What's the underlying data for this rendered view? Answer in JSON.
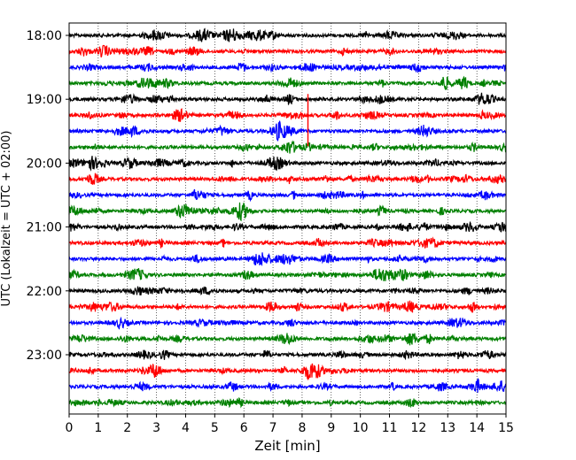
{
  "chart_data": {
    "type": "line",
    "title": "",
    "xlabel": "Zeit  [min]",
    "ylabel": "UTC (Lokalzeit = UTC + 02:00)",
    "xlim": [
      0,
      15
    ],
    "x_ticks": [
      "0",
      "1",
      "2",
      "3",
      "4",
      "5",
      "6",
      "7",
      "8",
      "9",
      "10",
      "11",
      "12",
      "13",
      "14",
      "15"
    ],
    "y_ticks": [
      "18:00",
      "19:00",
      "20:00",
      "21:00",
      "22:00",
      "23:00"
    ],
    "grid": "vertical dotted at each minute",
    "legend": "none",
    "series_colors_cycle": [
      "#000000",
      "#ff0000",
      "#0000ff",
      "#008000"
    ],
    "traces": [
      {
        "start": "18:00",
        "color": "#000000"
      },
      {
        "start": "18:15",
        "color": "#ff0000"
      },
      {
        "start": "18:30",
        "color": "#0000ff"
      },
      {
        "start": "18:45",
        "color": "#008000"
      },
      {
        "start": "19:00",
        "color": "#000000"
      },
      {
        "start": "19:15",
        "color": "#ff0000"
      },
      {
        "start": "19:30",
        "color": "#0000ff"
      },
      {
        "start": "19:45",
        "color": "#008000"
      },
      {
        "start": "20:00",
        "color": "#000000"
      },
      {
        "start": "20:15",
        "color": "#ff0000"
      },
      {
        "start": "20:30",
        "color": "#0000ff"
      },
      {
        "start": "20:45",
        "color": "#008000"
      },
      {
        "start": "21:00",
        "color": "#000000"
      },
      {
        "start": "21:15",
        "color": "#ff0000"
      },
      {
        "start": "21:30",
        "color": "#0000ff"
      },
      {
        "start": "21:45",
        "color": "#008000"
      },
      {
        "start": "22:00",
        "color": "#000000"
      },
      {
        "start": "22:15",
        "color": "#ff0000"
      },
      {
        "start": "22:30",
        "color": "#0000ff"
      },
      {
        "start": "22:45",
        "color": "#008000"
      },
      {
        "start": "23:00",
        "color": "#000000"
      },
      {
        "start": "23:15",
        "color": "#ff0000"
      },
      {
        "start": "23:30",
        "color": "#0000ff"
      },
      {
        "start": "23:45",
        "color": "#008000"
      }
    ],
    "annotations": [
      {
        "trace_start": "19:15",
        "x_min": 8.2,
        "description": "single large spike spanning several traces"
      }
    ]
  }
}
